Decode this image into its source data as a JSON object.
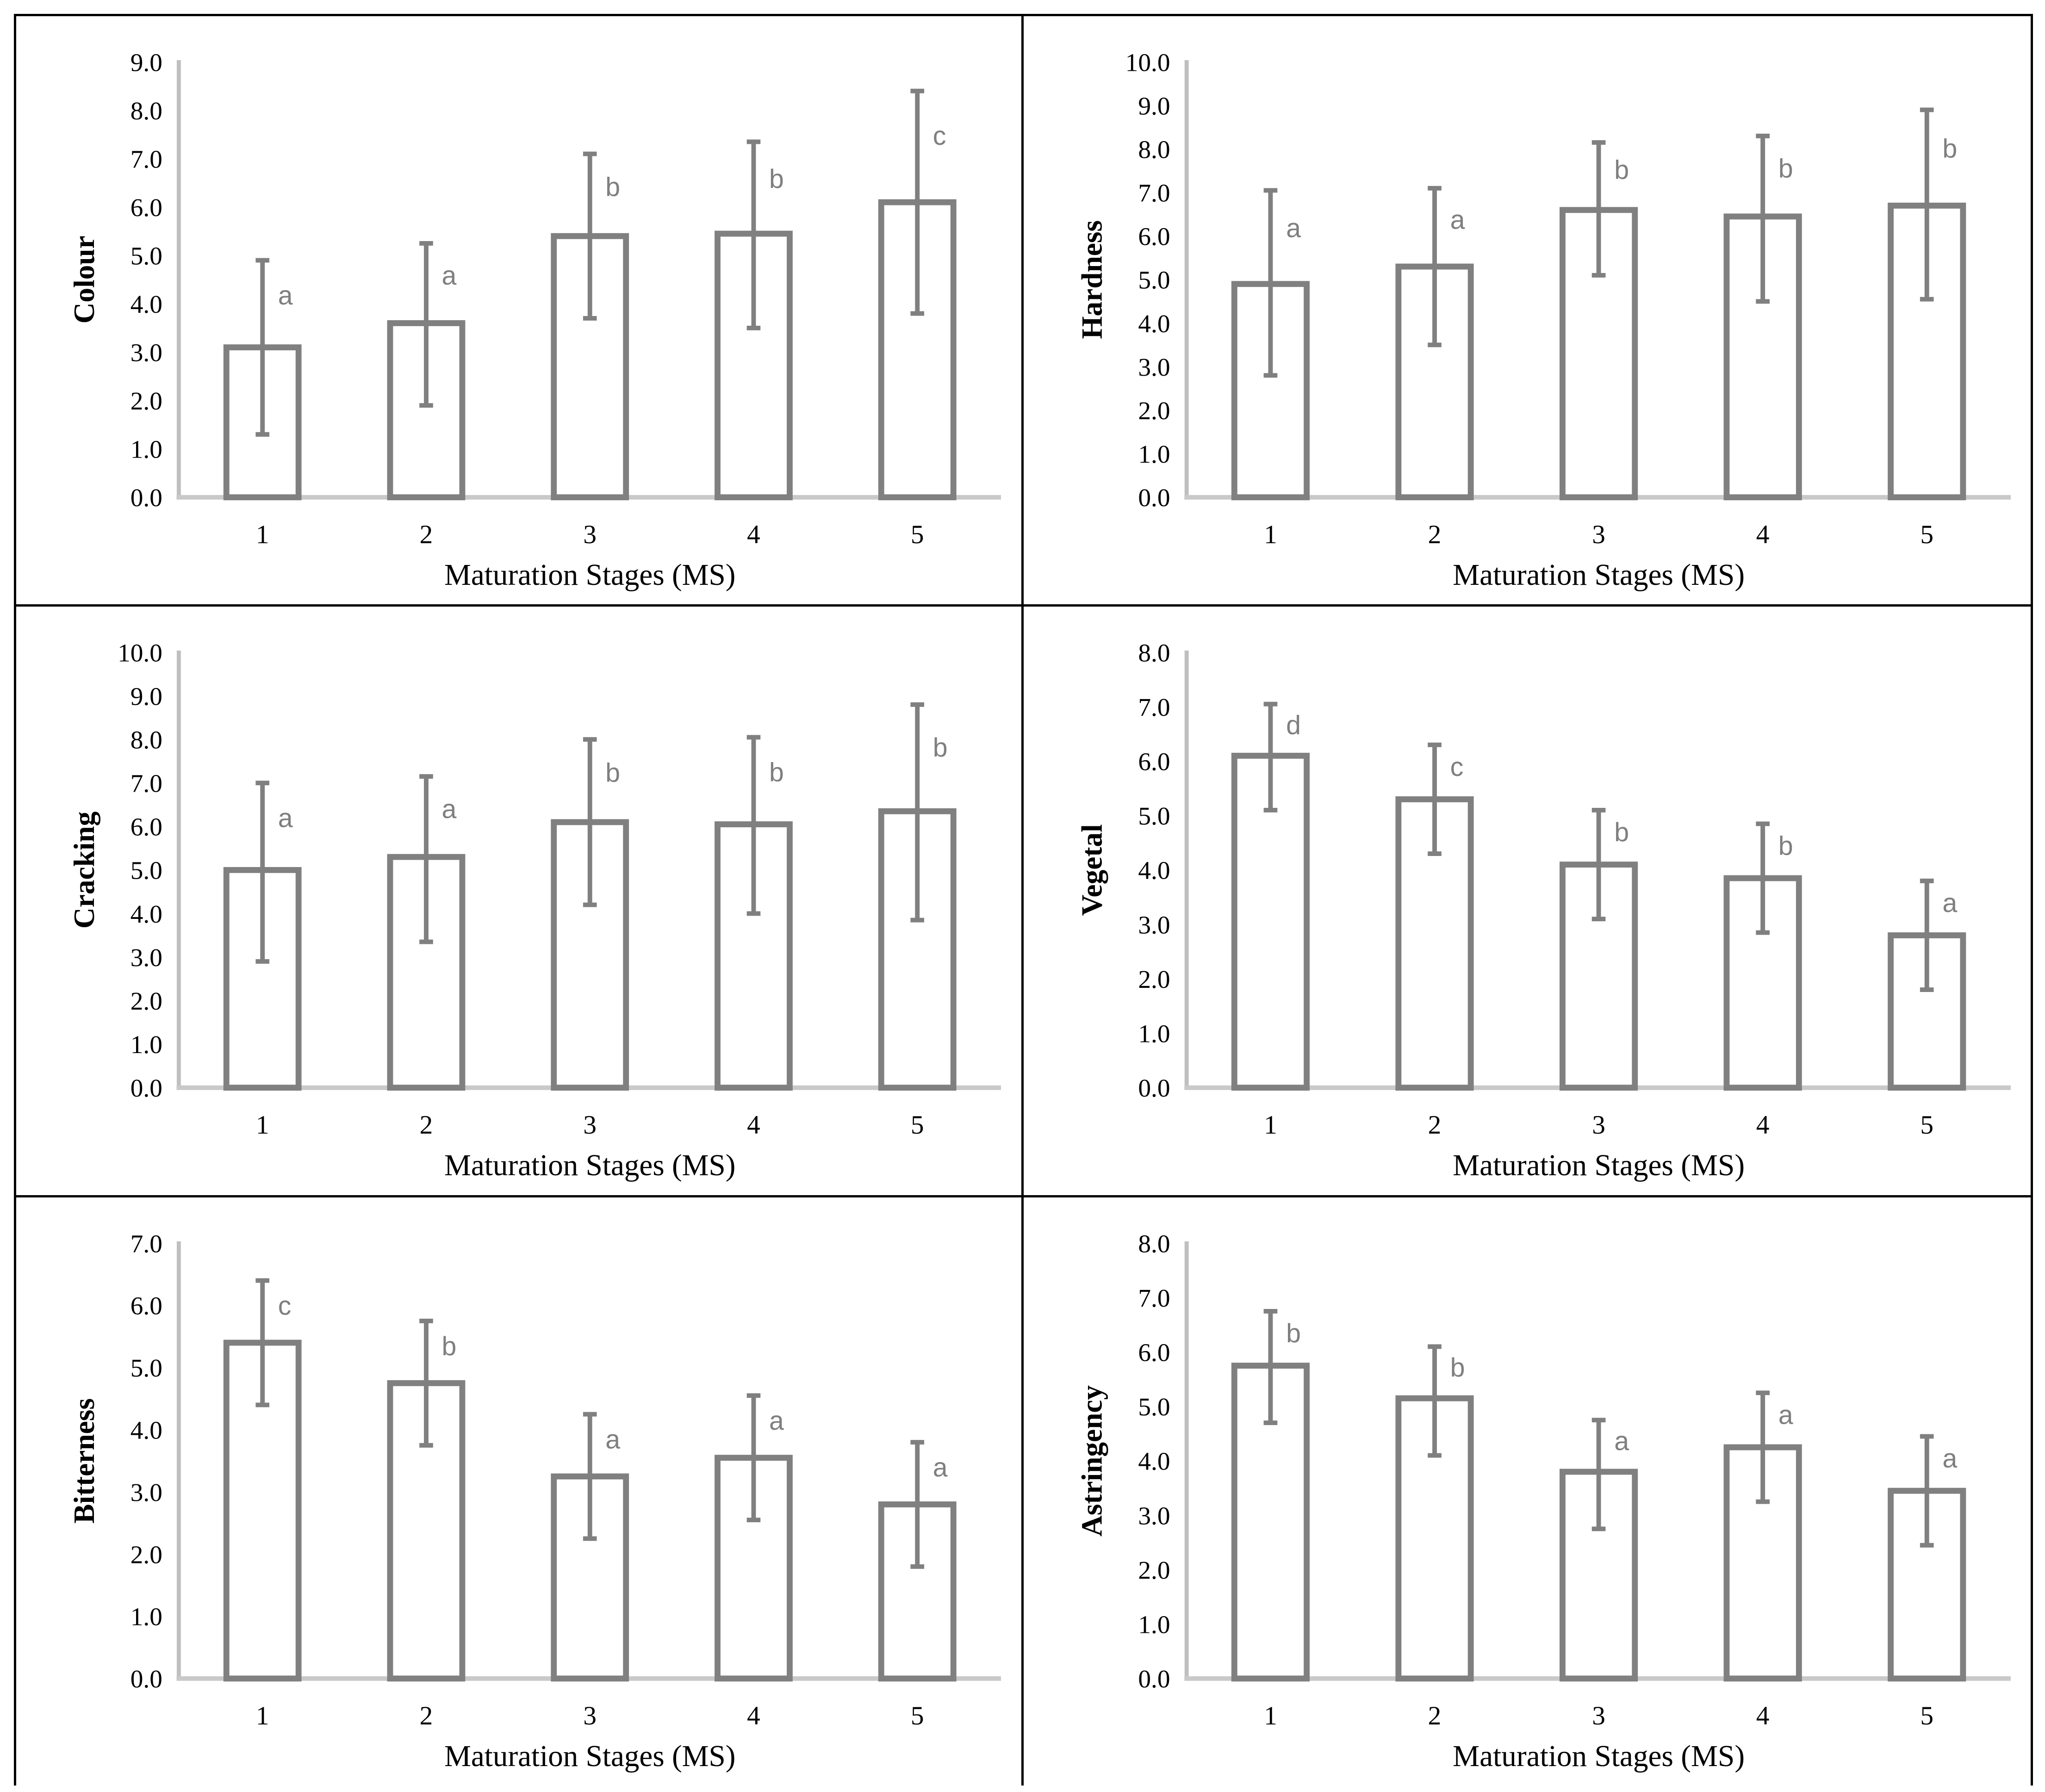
{
  "figure": {
    "xlabel": "Maturation Stages (MS)",
    "categories": [
      "1",
      "2",
      "3",
      "4",
      "5"
    ]
  },
  "colors": {
    "bar_fill": "#ffffff",
    "bar_stroke": "#808080",
    "error_bar": "#808080",
    "sig_letter": "#7f7f7f",
    "axis_line": "#bfbfbf",
    "baseline": "#c9c9c9",
    "text": "#000000",
    "panel_border": "#000000"
  },
  "chart_data": [
    {
      "id": "colour",
      "type": "bar",
      "title": "",
      "ylabel": "Colour",
      "xlabel": "Maturation Stages (MS)",
      "categories": [
        "1",
        "2",
        "3",
        "4",
        "5"
      ],
      "values": [
        3.1,
        3.6,
        5.4,
        5.45,
        6.1
      ],
      "err_low": [
        1.3,
        1.9,
        3.7,
        3.5,
        3.8
      ],
      "err_high": [
        4.9,
        5.25,
        7.1,
        7.35,
        8.4
      ],
      "sig_letters": [
        "a",
        "a",
        "b",
        "b",
        "c"
      ],
      "ylim": [
        0,
        9
      ],
      "yticks": [
        "0.0",
        "1.0",
        "2.0",
        "3.0",
        "4.0",
        "5.0",
        "6.0",
        "7.0",
        "8.0",
        "9.0"
      ],
      "grid": false,
      "legend": null
    },
    {
      "id": "hardness",
      "type": "bar",
      "title": "",
      "ylabel": "Hardness",
      "xlabel": "Maturation Stages (MS)",
      "categories": [
        "1",
        "2",
        "3",
        "4",
        "5"
      ],
      "values": [
        4.9,
        5.3,
        6.6,
        6.45,
        6.7
      ],
      "err_low": [
        2.8,
        3.5,
        5.1,
        4.5,
        4.55
      ],
      "err_high": [
        7.05,
        7.1,
        8.15,
        8.3,
        8.9
      ],
      "sig_letters": [
        "a",
        "a",
        "b",
        "b",
        "b"
      ],
      "ylim": [
        0,
        10
      ],
      "yticks": [
        "0.0",
        "1.0",
        "2.0",
        "3.0",
        "4.0",
        "5.0",
        "6.0",
        "7.0",
        "8.0",
        "9.0",
        "10.0"
      ],
      "grid": false,
      "legend": null
    },
    {
      "id": "cracking",
      "type": "bar",
      "title": "",
      "ylabel": "Cracking",
      "xlabel": "Maturation Stages (MS)",
      "categories": [
        "1",
        "2",
        "3",
        "4",
        "5"
      ],
      "values": [
        5.0,
        5.3,
        6.1,
        6.05,
        6.35
      ],
      "err_low": [
        2.9,
        3.35,
        4.2,
        4.0,
        3.85
      ],
      "err_high": [
        7.0,
        7.15,
        8.0,
        8.05,
        8.8
      ],
      "sig_letters": [
        "a",
        "a",
        "b",
        "b",
        "b"
      ],
      "ylim": [
        0,
        10
      ],
      "yticks": [
        "0.0",
        "1.0",
        "2.0",
        "3.0",
        "4.0",
        "5.0",
        "6.0",
        "7.0",
        "8.0",
        "9.0",
        "10.0"
      ],
      "grid": false,
      "legend": null
    },
    {
      "id": "vegetal",
      "type": "bar",
      "title": "",
      "ylabel": "Vegetal",
      "xlabel": "Maturation Stages (MS)",
      "categories": [
        "1",
        "2",
        "3",
        "4",
        "5"
      ],
      "values": [
        6.1,
        5.3,
        4.1,
        3.85,
        2.8
      ],
      "err_low": [
        5.1,
        4.3,
        3.1,
        2.85,
        1.8
      ],
      "err_high": [
        7.05,
        6.3,
        5.1,
        4.85,
        3.8
      ],
      "sig_letters": [
        "d",
        "c",
        "b",
        "b",
        "a"
      ],
      "ylim": [
        0,
        8
      ],
      "yticks": [
        "0.0",
        "1.0",
        "2.0",
        "3.0",
        "4.0",
        "5.0",
        "6.0",
        "7.0",
        "8.0"
      ],
      "grid": false,
      "legend": null
    },
    {
      "id": "bitterness",
      "type": "bar",
      "title": "",
      "ylabel": "Bitterness",
      "xlabel": "Maturation Stages (MS)",
      "categories": [
        "1",
        "2",
        "3",
        "4",
        "5"
      ],
      "values": [
        5.4,
        4.75,
        3.25,
        3.55,
        2.8
      ],
      "err_low": [
        4.4,
        3.75,
        2.25,
        2.55,
        1.8
      ],
      "err_high": [
        6.4,
        5.75,
        4.25,
        4.55,
        3.8
      ],
      "sig_letters": [
        "c",
        "b",
        "a",
        "a",
        "a"
      ],
      "ylim": [
        0,
        7
      ],
      "yticks": [
        "0.0",
        "1.0",
        "2.0",
        "3.0",
        "4.0",
        "5.0",
        "6.0",
        "7.0"
      ],
      "grid": false,
      "legend": null
    },
    {
      "id": "astringency",
      "type": "bar",
      "title": "",
      "ylabel": "Astringency",
      "xlabel": "Maturation Stages (MS)",
      "categories": [
        "1",
        "2",
        "3",
        "4",
        "5"
      ],
      "values": [
        5.75,
        5.15,
        3.8,
        4.25,
        3.45
      ],
      "err_low": [
        4.7,
        4.1,
        2.75,
        3.25,
        2.45
      ],
      "err_high": [
        6.75,
        6.1,
        4.75,
        5.25,
        4.45
      ],
      "sig_letters": [
        "b",
        "b",
        "a",
        "a",
        "a"
      ],
      "ylim": [
        0,
        8
      ],
      "yticks": [
        "0.0",
        "1.0",
        "2.0",
        "3.0",
        "4.0",
        "5.0",
        "6.0",
        "7.0",
        "8.0"
      ],
      "grid": false,
      "legend": null
    }
  ]
}
